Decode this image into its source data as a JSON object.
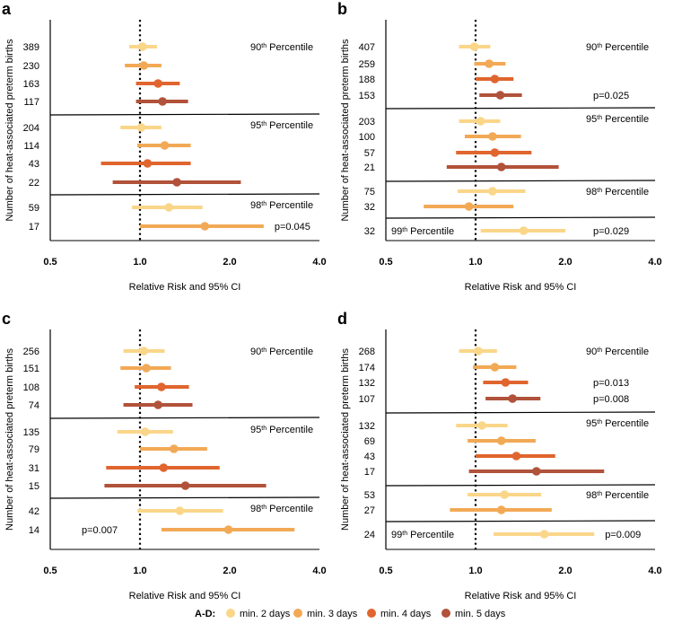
{
  "chart_data": {
    "type": "forest",
    "x_scale": "log",
    "xlim": [
      0.5,
      4.0
    ],
    "xticks": [
      "0.5",
      "1.0",
      "2.0",
      "4.0"
    ],
    "reference_line": 1.0,
    "xlabel": "Relative Risk and 95% CI",
    "ylabel": "Number of heat-associated preterm births",
    "legend": {
      "prefix": "A-D:",
      "items": [
        {
          "key": "d2",
          "label": "min. 2 days",
          "color": "#FAD689"
        },
        {
          "key": "d3",
          "label": "min. 3 days",
          "color": "#F2A955"
        },
        {
          "key": "d4",
          "label": "min. 4 days",
          "color": "#E0652E"
        },
        {
          "key": "d5",
          "label": "min. 5 days",
          "color": "#B1523A"
        }
      ]
    },
    "panels": [
      {
        "letter": "a",
        "groups": [
          {
            "title": "90th Percentile",
            "rows": [
              {
                "n": "389",
                "series": "d2",
                "rr": 1.02,
                "lo": 0.92,
                "hi": 1.14
              },
              {
                "n": "230",
                "series": "d3",
                "rr": 1.03,
                "lo": 0.89,
                "hi": 1.18
              },
              {
                "n": "163",
                "series": "d4",
                "rr": 1.15,
                "lo": 0.97,
                "hi": 1.36
              },
              {
                "n": "117",
                "series": "d5",
                "rr": 1.19,
                "lo": 0.97,
                "hi": 1.45
              }
            ]
          },
          {
            "title": "95th Percentile",
            "rows": [
              {
                "n": "204",
                "series": "d2",
                "rr": 1.01,
                "lo": 0.86,
                "hi": 1.18
              },
              {
                "n": "114",
                "series": "d3",
                "rr": 1.21,
                "lo": 0.98,
                "hi": 1.48
              },
              {
                "n": "43",
                "series": "d4",
                "rr": 1.06,
                "lo": 0.74,
                "hi": 1.48
              },
              {
                "n": "22",
                "series": "d5",
                "rr": 1.33,
                "lo": 0.81,
                "hi": 2.18
              }
            ]
          },
          {
            "title": "98th Percentile",
            "rows": [
              {
                "n": "59",
                "series": "d2",
                "rr": 1.25,
                "lo": 0.94,
                "hi": 1.62
              },
              {
                "n": "17",
                "series": "d3",
                "rr": 1.65,
                "lo": 1.0,
                "hi": 2.6,
                "p": "p=0.045"
              }
            ]
          }
        ]
      },
      {
        "letter": "b",
        "groups": [
          {
            "title": "90th Percentile",
            "rows": [
              {
                "n": "407",
                "series": "d2",
                "rr": 0.99,
                "lo": 0.88,
                "hi": 1.12
              },
              {
                "n": "259",
                "series": "d3",
                "rr": 1.11,
                "lo": 0.99,
                "hi": 1.26
              },
              {
                "n": "188",
                "series": "d4",
                "rr": 1.16,
                "lo": 1.0,
                "hi": 1.34
              },
              {
                "n": "153",
                "series": "d5",
                "rr": 1.21,
                "lo": 1.03,
                "hi": 1.43,
                "p": "p=0.025"
              }
            ]
          },
          {
            "title": "95th Percentile",
            "rows": [
              {
                "n": "203",
                "series": "d2",
                "rr": 1.04,
                "lo": 0.88,
                "hi": 1.21
              },
              {
                "n": "100",
                "series": "d3",
                "rr": 1.14,
                "lo": 0.92,
                "hi": 1.42
              },
              {
                "n": "57",
                "series": "d4",
                "rr": 1.16,
                "lo": 0.86,
                "hi": 1.54
              },
              {
                "n": "21",
                "series": "d5",
                "rr": 1.22,
                "lo": 0.8,
                "hi": 1.9
              }
            ]
          },
          {
            "title": "98th Percentile",
            "rows": [
              {
                "n": "75",
                "series": "d2",
                "rr": 1.14,
                "lo": 0.87,
                "hi": 1.47
              },
              {
                "n": "32",
                "series": "d3",
                "rr": 0.95,
                "lo": 0.67,
                "hi": 1.34
              }
            ]
          },
          {
            "title": "99th Percentile",
            "rows": [
              {
                "n": "32",
                "series": "d2",
                "rr": 1.45,
                "lo": 1.04,
                "hi": 2.0,
                "p": "p=0.029"
              }
            ]
          }
        ]
      },
      {
        "letter": "c",
        "groups": [
          {
            "title": "90th Percentile",
            "rows": [
              {
                "n": "256",
                "series": "d2",
                "rr": 1.03,
                "lo": 0.88,
                "hi": 1.21
              },
              {
                "n": "151",
                "series": "d3",
                "rr": 1.05,
                "lo": 0.86,
                "hi": 1.27
              },
              {
                "n": "108",
                "series": "d4",
                "rr": 1.18,
                "lo": 0.96,
                "hi": 1.46
              },
              {
                "n": "74",
                "series": "d5",
                "rr": 1.15,
                "lo": 0.88,
                "hi": 1.5
              }
            ]
          },
          {
            "title": "95th Percentile",
            "rows": [
              {
                "n": "135",
                "series": "d2",
                "rr": 1.04,
                "lo": 0.84,
                "hi": 1.29
              },
              {
                "n": "79",
                "series": "d3",
                "rr": 1.3,
                "lo": 1.0,
                "hi": 1.68
              },
              {
                "n": "31",
                "series": "d4",
                "rr": 1.2,
                "lo": 0.77,
                "hi": 1.85
              },
              {
                "n": "15",
                "series": "d5",
                "rr": 1.42,
                "lo": 0.76,
                "hi": 2.65
              }
            ]
          },
          {
            "title": "98th Percentile",
            "rows": [
              {
                "n": "42",
                "series": "d2",
                "rr": 1.36,
                "lo": 0.98,
                "hi": 1.9
              },
              {
                "n": "14",
                "series": "d3",
                "rr": 1.98,
                "lo": 1.18,
                "hi": 3.3,
                "p": "p=0.007",
                "p_pos": "left"
              }
            ]
          }
        ]
      },
      {
        "letter": "d",
        "groups": [
          {
            "title": "90th Percentile",
            "rows": [
              {
                "n": "268",
                "series": "d2",
                "rr": 1.02,
                "lo": 0.88,
                "hi": 1.18
              },
              {
                "n": "174",
                "series": "d3",
                "rr": 1.16,
                "lo": 0.98,
                "hi": 1.37
              },
              {
                "n": "132",
                "series": "d4",
                "rr": 1.26,
                "lo": 1.06,
                "hi": 1.5,
                "p": "p=0.013"
              },
              {
                "n": "107",
                "series": "d5",
                "rr": 1.33,
                "lo": 1.08,
                "hi": 1.65,
                "p": "p=0.008"
              }
            ]
          },
          {
            "title": "95th Percentile",
            "rows": [
              {
                "n": "132",
                "series": "d2",
                "rr": 1.05,
                "lo": 0.86,
                "hi": 1.28
              },
              {
                "n": "69",
                "series": "d3",
                "rr": 1.22,
                "lo": 0.94,
                "hi": 1.59
              },
              {
                "n": "43",
                "series": "d4",
                "rr": 1.37,
                "lo": 1.0,
                "hi": 1.85
              },
              {
                "n": "17",
                "series": "d5",
                "rr": 1.6,
                "lo": 0.95,
                "hi": 2.7
              }
            ]
          },
          {
            "title": "98th Percentile",
            "rows": [
              {
                "n": "53",
                "series": "d2",
                "rr": 1.25,
                "lo": 0.94,
                "hi": 1.66
              },
              {
                "n": "27",
                "series": "d3",
                "rr": 1.22,
                "lo": 0.82,
                "hi": 1.8
              }
            ]
          },
          {
            "title": "99th Percentile",
            "rows": [
              {
                "n": "24",
                "series": "d2",
                "rr": 1.7,
                "lo": 1.15,
                "hi": 2.5,
                "p": "p=0.009"
              }
            ]
          }
        ]
      }
    ]
  }
}
